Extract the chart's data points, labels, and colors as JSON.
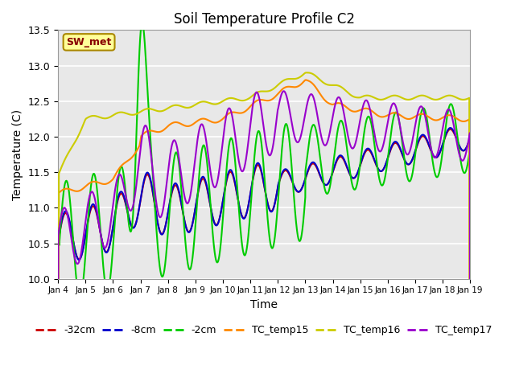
{
  "title": "Soil Temperature Profile C2",
  "xlabel": "Time",
  "ylabel": "Temperature (C)",
  "ylim": [
    10.0,
    13.5
  ],
  "xlim": [
    0,
    360
  ],
  "background_color": "#ffffff",
  "plot_bg_color": "#e8e8e8",
  "grid_color": "#ffffff",
  "annotation_text": "SW_met",
  "annotation_bg": "#ffff99",
  "annotation_border": "#aa8800",
  "annotation_text_color": "#880000",
  "series_colors": {
    "depth_32cm": "#cc0000",
    "depth_8cm": "#0000cc",
    "depth_2cm": "#00cc00",
    "TC_temp15": "#ff8800",
    "TC_temp16": "#cccc00",
    "TC_temp17": "#9900cc"
  },
  "line_width": 1.5,
  "xtick_labels": [
    "Jan 4",
    "Jan 5",
    "Jan 6",
    "Jan 7",
    "Jan 8",
    "Jan 9",
    "Jan 10",
    "Jan 11",
    "Jan 12",
    "Jan 13",
    "Jan 14",
    "Jan 15",
    "Jan 16",
    "Jan 17",
    "Jan 18",
    "Jan 19"
  ],
  "xtick_positions": [
    0,
    24,
    48,
    72,
    96,
    120,
    144,
    168,
    192,
    216,
    240,
    264,
    288,
    312,
    336,
    360
  ]
}
